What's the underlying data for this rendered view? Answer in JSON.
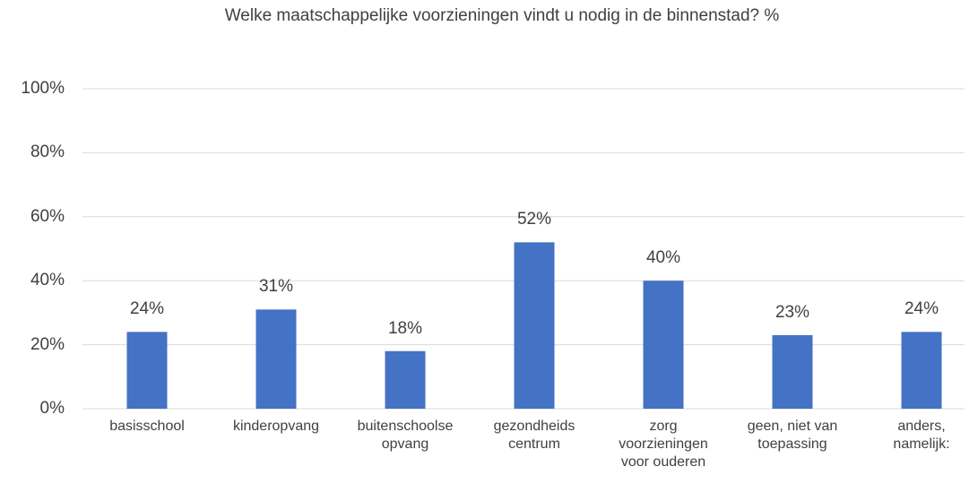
{
  "chart_data": {
    "type": "bar",
    "title": "Welke maatschappelijke voorzieningen vindt u nodig in de binnenstad? %",
    "categories": [
      "basisschool",
      "kinderopvang",
      "buitenschoolse\nopvang",
      "gezondheids\ncentrum",
      "zorg\nvoorzieningen\nvoor ouderen",
      "geen, niet van\ntoepassing",
      "anders,\nnamelijk:"
    ],
    "values": [
      24,
      31,
      18,
      52,
      40,
      23,
      24
    ],
    "value_labels": [
      "24%",
      "31%",
      "18%",
      "52%",
      "40%",
      "23%",
      "24%"
    ],
    "color": "#4472c4",
    "ylim": [
      0,
      100
    ],
    "yticks": [
      {
        "value": 0,
        "label": "0%"
      },
      {
        "value": 20,
        "label": "20%"
      },
      {
        "value": 40,
        "label": "40%"
      },
      {
        "value": 60,
        "label": "60%"
      },
      {
        "value": 80,
        "label": "80%"
      },
      {
        "value": 100,
        "label": "100%"
      }
    ],
    "grid": true
  }
}
